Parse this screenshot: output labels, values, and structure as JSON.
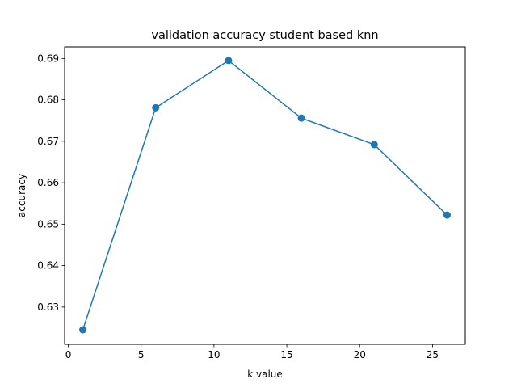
{
  "chart_data": {
    "type": "line",
    "title": "validation accuracy student based knn",
    "xlabel": "k value",
    "ylabel": "accuracy",
    "xlim": [
      -0.25,
      27.25
    ],
    "ylim": [
      0.621,
      0.6928
    ],
    "grid": false,
    "series": [
      {
        "x": [
          1,
          6,
          11,
          16,
          21,
          26
        ],
        "y": [
          0.6245,
          0.6781,
          0.6895,
          0.6756,
          0.6692,
          0.6522
        ],
        "color": "#1f77b4",
        "marker": "circle"
      }
    ],
    "x_ticks": [
      0,
      5,
      10,
      15,
      20,
      25
    ],
    "x_tick_labels": [
      "0",
      "5",
      "10",
      "15",
      "20",
      "25"
    ],
    "y_ticks": [
      0.63,
      0.64,
      0.65,
      0.66,
      0.67,
      0.68,
      0.69
    ],
    "y_tick_labels": [
      "0.63",
      "0.64",
      "0.65",
      "0.66",
      "0.67",
      "0.68",
      "0.69"
    ]
  }
}
